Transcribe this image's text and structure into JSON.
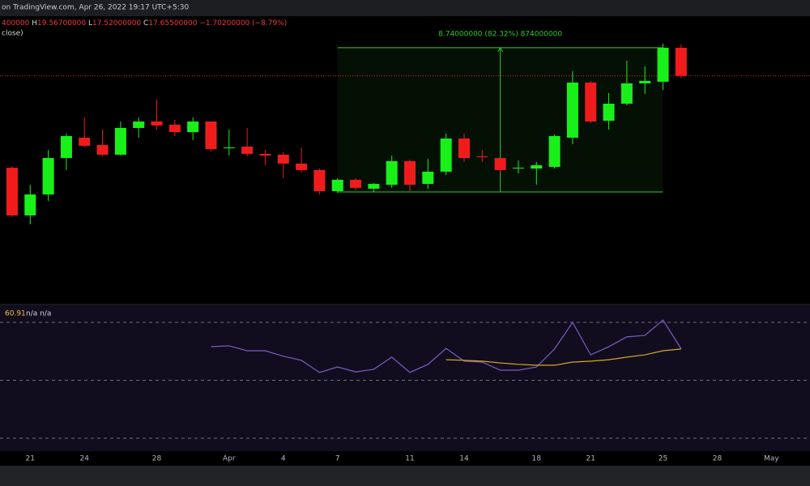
{
  "header": {
    "source": "on TradingView.com, Apr 26, 2022 19:17 UTC+5:30",
    "ohlc": [
      "400000",
      "H",
      "19.56700000",
      "L",
      "17.52000000",
      "C",
      "17.65500000",
      "−1.70200000 (−8.79%)"
    ],
    "series_label": "close)"
  },
  "chart_data": {
    "type": "candlestick",
    "up_color": "#19f019",
    "down_color": "#f01c1c",
    "open": [
      12.09,
      9.2,
      10.47,
      12.68,
      13.91,
      13.47,
      12.88,
      14.5,
      14.89,
      14.7,
      14.25,
      14.89,
      13.27,
      13.37,
      12.93,
      12.88,
      12.34,
      11.95,
      10.67,
      11.36,
      10.82,
      11.06,
      12.49,
      11.11,
      11.85,
      13.86,
      12.78,
      12.68,
      12.04,
      12.04,
      12.14,
      13.91,
      17.25,
      14.94,
      15.97,
      17.2,
      17.3,
      19.357
    ],
    "high": [
      12.19,
      11.06,
      13.17,
      14.16,
      15.14,
      14.4,
      14.89,
      15.14,
      16.22,
      14.99,
      15.14,
      14.89,
      14.4,
      14.5,
      13.17,
      13.03,
      13.32,
      12.04,
      11.46,
      11.46,
      11.16,
      12.83,
      12.58,
      12.63,
      14.16,
      14.16,
      13.17,
      12.68,
      12.53,
      12.44,
      14.11,
      17.94,
      17.35,
      16.61,
      18.57,
      18.23,
      19.61,
      19.567
    ],
    "low": [
      9.1,
      8.66,
      10.08,
      11.95,
      13.32,
      12.78,
      12.83,
      13.91,
      14.4,
      14.01,
      13.76,
      13.08,
      12.83,
      12.78,
      12.24,
      11.46,
      11.8,
      10.47,
      10.57,
      10.72,
      10.62,
      10.87,
      10.67,
      10.82,
      11.65,
      12.44,
      12.44,
      11.8,
      11.75,
      11.06,
      12.04,
      13.52,
      14.79,
      14.4,
      15.87,
      16.56,
      16.81,
      17.52
    ],
    "close": [
      9.2,
      10.47,
      12.68,
      14.01,
      13.42,
      12.88,
      14.5,
      14.89,
      14.65,
      14.25,
      14.89,
      13.22,
      13.32,
      12.93,
      12.83,
      12.34,
      11.95,
      10.67,
      11.36,
      10.87,
      11.11,
      12.49,
      11.06,
      11.85,
      13.86,
      12.68,
      12.73,
      11.95,
      12.09,
      12.24,
      14.01,
      17.25,
      14.89,
      15.97,
      17.2,
      17.35,
      19.36,
      17.655
    ],
    "ylim": [
      3.85,
      21.27
    ],
    "xlim": [
      -0.67,
      44.13
    ],
    "xticks": [
      {
        "value": 1,
        "label": "21"
      },
      {
        "value": 4,
        "label": "24"
      },
      {
        "value": 8,
        "label": "28"
      },
      {
        "value": 12,
        "label": "Apr"
      },
      {
        "value": 15,
        "label": "4"
      },
      {
        "value": 18,
        "label": "7"
      },
      {
        "value": 22,
        "label": "11"
      },
      {
        "value": 25,
        "label": "14"
      },
      {
        "value": 29,
        "label": "18"
      },
      {
        "value": 32,
        "label": "21"
      },
      {
        "value": 36,
        "label": "25"
      },
      {
        "value": 39,
        "label": "28"
      },
      {
        "value": 42,
        "label": "May"
      }
    ],
    "measure": {
      "label": "8.74000000 (82.32%) 874000000",
      "start": 10.62,
      "end": 19.36,
      "start_index": 18,
      "end_index": 36,
      "color": "#2ecc2e"
    },
    "rsi": {
      "ylim": [
        25.53,
        75.87
      ],
      "levels": [
        70,
        50,
        30
      ],
      "legend_value": "60.91",
      "legend_rest": "n/a n/a",
      "series": [
        {
          "color": "#7b5cc4",
          "values": [
            null,
            null,
            null,
            null,
            null,
            null,
            null,
            null,
            null,
            null,
            null,
            61.6,
            61.9,
            60.2,
            60.2,
            58.3,
            56.9,
            52.7,
            54.6,
            52.9,
            53.8,
            58.0,
            52.7,
            55.5,
            61.0,
            56.6,
            56.3,
            53.5,
            53.5,
            54.6,
            60.8,
            70.0,
            58.8,
            61.6,
            65.0,
            65.5,
            70.8,
            60.91
          ]
        },
        {
          "color": "#d4a82a",
          "values": [
            null,
            null,
            null,
            null,
            null,
            null,
            null,
            null,
            null,
            null,
            null,
            null,
            null,
            null,
            null,
            null,
            null,
            null,
            null,
            null,
            null,
            null,
            null,
            null,
            57.1,
            56.9,
            56.6,
            56.0,
            55.5,
            55.2,
            55.2,
            56.3,
            56.6,
            57.1,
            58.0,
            58.8,
            60.2,
            60.8
          ]
        }
      ]
    }
  }
}
